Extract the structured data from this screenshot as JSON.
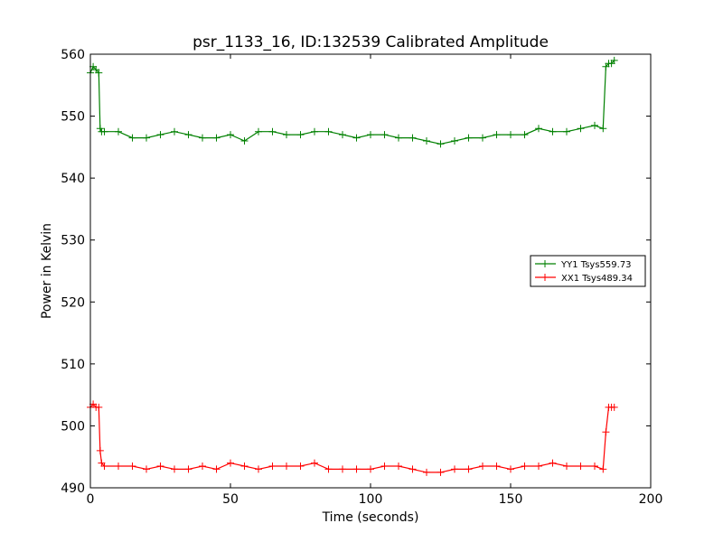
{
  "chart_data": {
    "type": "line",
    "title": "psr_1133_16, ID:132539 Calibrated Amplitude",
    "xlabel": "Time (seconds)",
    "ylabel": "Power in Kelvin",
    "xlim": [
      0,
      200
    ],
    "ylim": [
      490,
      560
    ],
    "xticks": [
      "0",
      "50",
      "100",
      "150",
      "200"
    ],
    "yticks": [
      "490",
      "500",
      "510",
      "520",
      "530",
      "540",
      "550",
      "560"
    ],
    "grid": false,
    "legend_position": "right",
    "marker": "+",
    "series": [
      {
        "name": "YY1 Tsys559.73",
        "color": "#008000",
        "x": [
          0,
          1,
          2,
          3,
          3.5,
          4,
          5,
          10,
          15,
          20,
          25,
          30,
          35,
          40,
          45,
          50,
          55,
          60,
          65,
          70,
          75,
          80,
          85,
          90,
          95,
          100,
          105,
          110,
          115,
          120,
          125,
          130,
          135,
          140,
          145,
          150,
          155,
          160,
          165,
          170,
          175,
          180,
          183,
          184,
          185,
          186,
          187
        ],
        "y": [
          557,
          558,
          557.5,
          557,
          548,
          547.5,
          547.5,
          547.5,
          546.5,
          546.5,
          547,
          547.5,
          547,
          546.5,
          546.5,
          547,
          546,
          547.5,
          547.5,
          547,
          547,
          547.5,
          547.5,
          547,
          546.5,
          547,
          547,
          546.5,
          546.5,
          546,
          545.5,
          546,
          546.5,
          546.5,
          547,
          547,
          547,
          548,
          547.5,
          547.5,
          548,
          548.5,
          548,
          558,
          558.5,
          558.5,
          559
        ]
      },
      {
        "name": "XX1 Tsys489.34",
        "color": "#ff0000",
        "x": [
          0,
          1,
          2,
          3,
          3.5,
          4,
          5,
          10,
          15,
          20,
          25,
          30,
          35,
          40,
          45,
          50,
          55,
          60,
          65,
          70,
          75,
          80,
          85,
          90,
          95,
          100,
          105,
          110,
          115,
          120,
          125,
          130,
          135,
          140,
          145,
          150,
          155,
          160,
          165,
          170,
          175,
          180,
          183,
          184,
          185,
          186,
          187
        ],
        "y": [
          503,
          503.5,
          503,
          503,
          496,
          494,
          493.5,
          493.5,
          493.5,
          493,
          493.5,
          493,
          493,
          493.5,
          493,
          494,
          493.5,
          493,
          493.5,
          493.5,
          493.5,
          494,
          493,
          493,
          493,
          493,
          493.5,
          493.5,
          493,
          492.5,
          492.5,
          493,
          493,
          493.5,
          493.5,
          493,
          493.5,
          493.5,
          494,
          493.5,
          493.5,
          493.5,
          493,
          499,
          503,
          503,
          503
        ]
      }
    ]
  }
}
